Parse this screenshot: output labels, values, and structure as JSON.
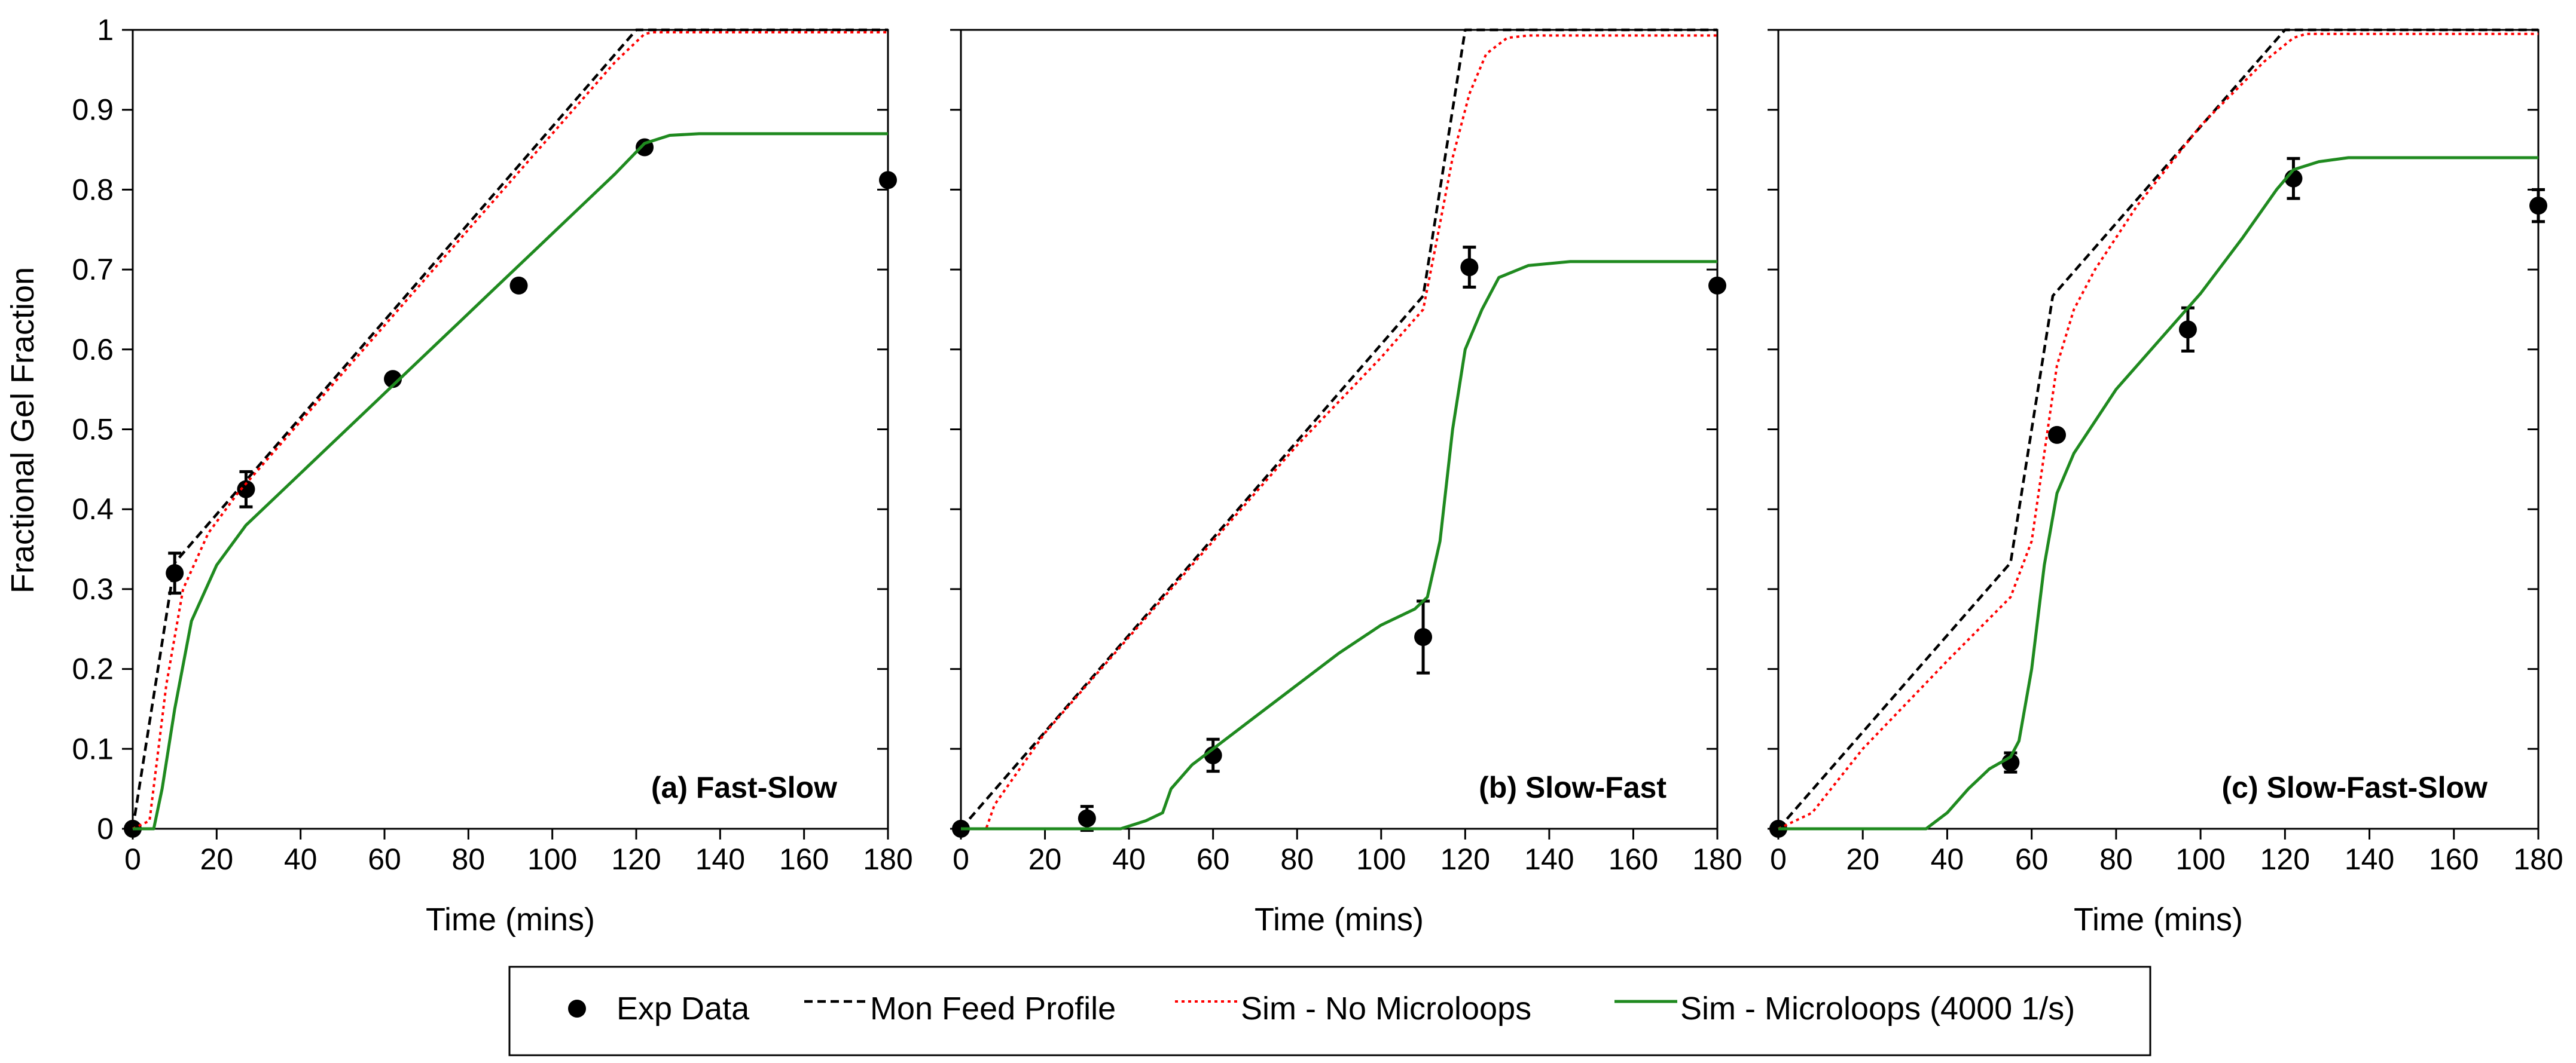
{
  "chart_data": [
    {
      "type": "line",
      "panel_label": "(a) Fast-Slow",
      "xlabel": "Time (mins)",
      "ylabel": "Fractional Gel Fraction",
      "xlim": [
        0,
        180
      ],
      "ylim": [
        0,
        1
      ],
      "xticks": [
        "0",
        "20",
        "40",
        "60",
        "80",
        "100",
        "120",
        "140",
        "160",
        "180"
      ],
      "yticks": [
        "0",
        "0.1",
        "0.2",
        "0.3",
        "0.4",
        "0.5",
        "0.6",
        "0.7",
        "0.8",
        "0.9",
        "1"
      ],
      "grid": false,
      "series": [
        {
          "name": "Exp Data",
          "kind": "points",
          "x": [
            0,
            10,
            27,
            62,
            92,
            122,
            180
          ],
          "y": [
            0,
            0.32,
            0.425,
            0.563,
            0.68,
            0.853,
            0.812
          ],
          "err": [
            0,
            0.025,
            0.022,
            0,
            0,
            0,
            0
          ]
        },
        {
          "name": "Mon Feed Profile",
          "kind": "dashed",
          "x": [
            0,
            10,
            120,
            180
          ],
          "y": [
            0,
            0.333,
            1.0,
            1.0
          ]
        },
        {
          "name": "Sim - No Microloops",
          "kind": "dotted",
          "x": [
            0,
            4,
            8,
            12,
            18,
            25,
            35,
            50,
            65,
            80,
            100,
            115,
            122,
            124,
            180
          ],
          "y": [
            0,
            0.01,
            0.18,
            0.3,
            0.37,
            0.42,
            0.48,
            0.57,
            0.66,
            0.75,
            0.87,
            0.96,
            0.995,
            0.997,
            0.997
          ]
        },
        {
          "name": "Sim - Microloops (4000 1/s)",
          "kind": "solid",
          "x": [
            0,
            5,
            7,
            10,
            14,
            20,
            27,
            35,
            45,
            55,
            65,
            75,
            85,
            95,
            105,
            115,
            122,
            128,
            135,
            180
          ],
          "y": [
            0,
            0.0,
            0.05,
            0.15,
            0.26,
            0.33,
            0.38,
            0.42,
            0.47,
            0.52,
            0.57,
            0.62,
            0.67,
            0.72,
            0.77,
            0.82,
            0.858,
            0.868,
            0.87,
            0.87
          ]
        }
      ]
    },
    {
      "type": "line",
      "panel_label": "(b) Slow-Fast",
      "xlabel": "Time (mins)",
      "xlim": [
        0,
        180
      ],
      "ylim": [
        0,
        1
      ],
      "xticks": [
        "0",
        "20",
        "40",
        "60",
        "80",
        "100",
        "120",
        "140",
        "160",
        "180"
      ],
      "grid": false,
      "series": [
        {
          "name": "Exp Data",
          "kind": "points",
          "x": [
            0,
            30,
            60,
            110,
            121,
            180
          ],
          "y": [
            0,
            0.013,
            0.092,
            0.24,
            0.703,
            0.68
          ],
          "err": [
            0,
            0.015,
            0.02,
            0.045,
            0.025,
            0
          ]
        },
        {
          "name": "Mon Feed Profile",
          "kind": "dashed",
          "x": [
            0,
            110,
            120,
            180
          ],
          "y": [
            0,
            0.667,
            1.0,
            1.0
          ]
        },
        {
          "name": "Sim - No Microloops",
          "kind": "dotted",
          "x": [
            0,
            6,
            8,
            20,
            40,
            60,
            80,
            100,
            110,
            113,
            117,
            121,
            125,
            130,
            135,
            180
          ],
          "y": [
            0,
            0.0,
            0.03,
            0.12,
            0.24,
            0.36,
            0.48,
            0.59,
            0.65,
            0.73,
            0.84,
            0.92,
            0.97,
            0.99,
            0.993,
            0.993
          ]
        },
        {
          "name": "Sim - Microloops (4000 1/s)",
          "kind": "solid",
          "x": [
            0,
            38,
            44,
            48,
            50,
            55,
            60,
            70,
            80,
            90,
            100,
            108,
            111,
            114,
            117,
            120,
            124,
            128,
            135,
            145,
            180
          ],
          "y": [
            0,
            0.0,
            0.01,
            0.02,
            0.05,
            0.08,
            0.1,
            0.14,
            0.18,
            0.22,
            0.255,
            0.275,
            0.29,
            0.36,
            0.5,
            0.6,
            0.65,
            0.69,
            0.705,
            0.71,
            0.71
          ]
        }
      ]
    },
    {
      "type": "line",
      "panel_label": "(c) Slow-Fast-Slow",
      "xlabel": "Time (mins)",
      "xlim": [
        0,
        180
      ],
      "ylim": [
        0,
        1
      ],
      "xticks": [
        "0",
        "20",
        "40",
        "60",
        "80",
        "100",
        "120",
        "140",
        "160",
        "180"
      ],
      "grid": false,
      "series": [
        {
          "name": "Exp Data",
          "kind": "points",
          "x": [
            0,
            55,
            66,
            97,
            122,
            180
          ],
          "y": [
            0,
            0.083,
            0.493,
            0.625,
            0.814,
            0.78
          ],
          "err": [
            0,
            0.012,
            0,
            0.027,
            0.025,
            0.02
          ]
        },
        {
          "name": "Mon Feed Profile",
          "kind": "dashed",
          "x": [
            0,
            55,
            65,
            120,
            180
          ],
          "y": [
            0,
            0.333,
            0.667,
            1.0,
            1.0
          ]
        },
        {
          "name": "Sim - No Microloops",
          "kind": "dotted",
          "x": [
            0,
            8,
            20,
            40,
            55,
            60,
            63,
            66,
            70,
            75,
            85,
            100,
            115,
            122,
            125,
            180
          ],
          "y": [
            0,
            0.02,
            0.1,
            0.21,
            0.29,
            0.36,
            0.47,
            0.58,
            0.65,
            0.7,
            0.78,
            0.88,
            0.96,
            0.99,
            0.995,
            0.995
          ]
        },
        {
          "name": "Sim - Microloops (4000 1/s)",
          "kind": "solid",
          "x": [
            0,
            35,
            40,
            45,
            50,
            55,
            57,
            60,
            63,
            66,
            70,
            75,
            80,
            90,
            100,
            110,
            118,
            122,
            128,
            135,
            180
          ],
          "y": [
            0,
            0.0,
            0.02,
            0.05,
            0.075,
            0.09,
            0.11,
            0.2,
            0.33,
            0.42,
            0.47,
            0.51,
            0.55,
            0.61,
            0.67,
            0.74,
            0.8,
            0.825,
            0.835,
            0.84,
            0.84
          ]
        }
      ]
    }
  ],
  "legend": {
    "position": "bottom-center",
    "items": [
      {
        "label": "Exp Data",
        "kind": "points",
        "color": "#000000"
      },
      {
        "label": "Mon Feed Profile",
        "kind": "dashed",
        "color": "#000000"
      },
      {
        "label": "Sim - No Microloops",
        "kind": "dotted",
        "color": "#ff0000"
      },
      {
        "label": "Sim - Microloops (4000 1/s)",
        "kind": "solid",
        "color": "#1f8a1f"
      }
    ]
  },
  "colors": {
    "points": "#000000",
    "dashed": "#000000",
    "dotted": "#ff0000",
    "solid": "#1f8a1f"
  }
}
